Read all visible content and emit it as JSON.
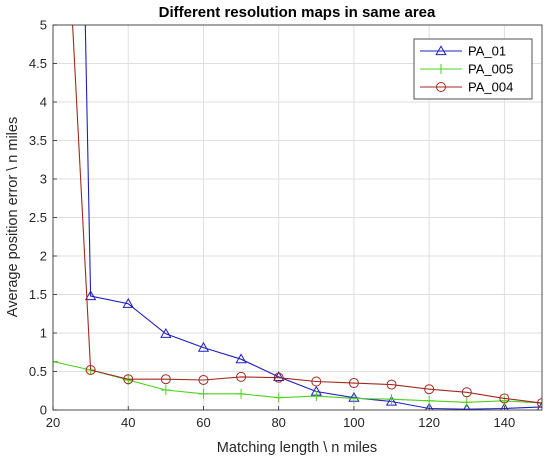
{
  "chart_data": {
    "type": "line",
    "title": "Different resolution maps in same area",
    "xlabel": "Matching length \\ n miles",
    "ylabel": "Average position error \\ n miles",
    "xlim": [
      20,
      150
    ],
    "ylim": [
      0,
      5
    ],
    "xticks": [
      20,
      40,
      60,
      80,
      100,
      120,
      140
    ],
    "yticks": [
      0,
      0.5,
      1,
      1.5,
      2,
      2.5,
      3,
      3.5,
      4,
      4.5,
      5
    ],
    "xtick_labels": [
      "20",
      "40",
      "60",
      "80",
      "100",
      "120",
      "140"
    ],
    "ytick_labels": [
      "0",
      "0.5",
      "1",
      "1.5",
      "2",
      "2.5",
      "3",
      "3.5",
      "4",
      "4.5",
      "5"
    ],
    "grid": true,
    "legend_position": "top-right",
    "series": [
      {
        "name": "PA_01",
        "color": "#1f1fbf",
        "marker": "triangle",
        "lead_in": [
          {
            "x": 28.5,
            "y": 5.2
          }
        ],
        "x": [
          30,
          40,
          50,
          60,
          70,
          80,
          90,
          100,
          110,
          120,
          130,
          140,
          150
        ],
        "y": [
          1.48,
          1.38,
          0.99,
          0.81,
          0.66,
          0.43,
          0.24,
          0.16,
          0.11,
          0.02,
          0.01,
          0.02,
          0.04
        ]
      },
      {
        "name": "PA_005",
        "color": "#4ed11f",
        "marker": "plus",
        "lead_in": [],
        "x": [
          20,
          30,
          40,
          50,
          60,
          70,
          80,
          90,
          100,
          110,
          120,
          130,
          140,
          150
        ],
        "y": [
          0.63,
          0.52,
          0.39,
          0.26,
          0.21,
          0.21,
          0.16,
          0.18,
          0.15,
          0.14,
          0.12,
          0.1,
          0.12,
          0.09
        ]
      },
      {
        "name": "PA_004",
        "color": "#a3291f",
        "marker": "circle",
        "lead_in": [
          {
            "x": 25,
            "y": 5.2
          }
        ],
        "x": [
          30,
          40,
          50,
          60,
          70,
          80,
          90,
          100,
          110,
          120,
          130,
          140,
          150
        ],
        "y": [
          0.52,
          0.4,
          0.4,
          0.39,
          0.43,
          0.42,
          0.37,
          0.35,
          0.33,
          0.27,
          0.23,
          0.15,
          0.09
        ]
      }
    ]
  }
}
